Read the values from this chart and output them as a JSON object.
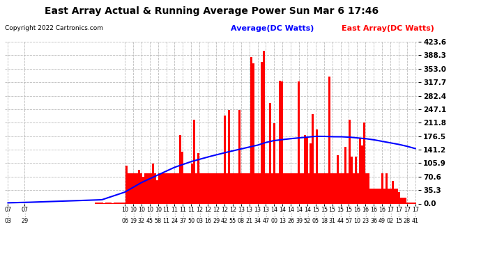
{
  "title": "East Array Actual & Running Average Power Sun Mar 6 17:46",
  "copyright": "Copyright 2022 Cartronics.com",
  "legend_avg": "Average(DC Watts)",
  "legend_east": "East Array(DC Watts)",
  "ylabel_right_ticks": [
    0.0,
    35.3,
    70.6,
    105.9,
    141.2,
    176.5,
    211.8,
    247.1,
    282.4,
    317.7,
    353.0,
    388.3,
    423.6
  ],
  "ymax": 423.6,
  "ymin": 0.0,
  "bg_color": "#ffffff",
  "grid_color": "#bbbbbb",
  "bar_color": "#ff0000",
  "line_color": "#0000ff",
  "title_color": "#000000",
  "copyright_color": "#000000",
  "legend_avg_color": "#0000ff",
  "legend_east_color": "#ff0000",
  "x_labels": [
    "07:03",
    "07:29",
    "10:06",
    "10:19",
    "10:32",
    "10:45",
    "10:58",
    "11:11",
    "11:24",
    "11:37",
    "11:50",
    "12:03",
    "12:16",
    "12:29",
    "12:42",
    "12:55",
    "13:08",
    "13:21",
    "13:34",
    "13:47",
    "14:00",
    "14:13",
    "14:26",
    "14:39",
    "14:52",
    "15:05",
    "15:18",
    "15:31",
    "15:44",
    "15:57",
    "16:10",
    "16:23",
    "16:36",
    "16:49",
    "17:02",
    "17:15",
    "17:28",
    "17:41"
  ],
  "start_time": "07:03",
  "end_time": "17:41"
}
